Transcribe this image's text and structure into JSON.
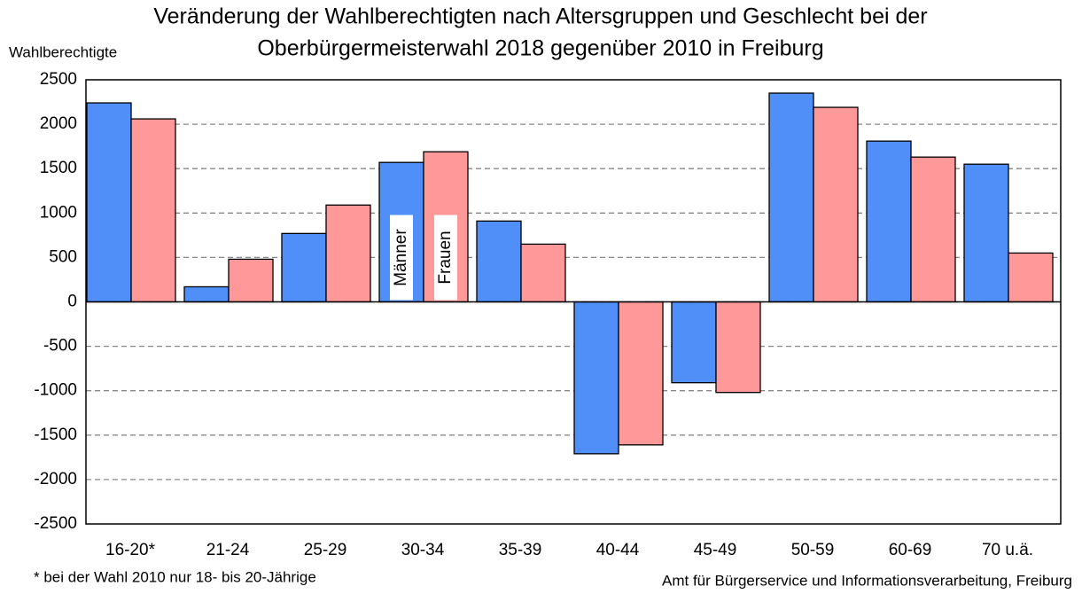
{
  "chart_data": {
    "type": "bar",
    "title": [
      "Veränderung der Wahlberechtigten nach Altersgruppen und Geschlecht bei der",
      "Oberbürgermeisterwahl 2018 gegenüber 2010 in Freiburg"
    ],
    "y_label": "Wahlberechtigte",
    "footnote": "* bei der Wahl 2010 nur 18- bis 20-Jährige",
    "source": "Amt für Bürgerservice und Informationsverarbeitung, Freiburg",
    "categories": [
      "16-20*",
      "21-24",
      "25-29",
      "30-34",
      "35-39",
      "40-44",
      "45-49",
      "50-59",
      "60-69",
      "70 u.ä."
    ],
    "series": [
      {
        "name": "Männer",
        "color": "#4f8ff7",
        "values": [
          2240,
          170,
          770,
          1570,
          910,
          -1710,
          -910,
          2350,
          1810,
          1550
        ]
      },
      {
        "name": "Frauen",
        "color": "#ff9999",
        "values": [
          2060,
          480,
          1090,
          1690,
          650,
          -1610,
          -1020,
          2190,
          1630,
          550
        ]
      }
    ],
    "legend_category": 3,
    "ylim": [
      -2500,
      2500
    ],
    "yticks": [
      -2500,
      -2000,
      -1500,
      -1000,
      -500,
      0,
      500,
      1000,
      1500,
      2000,
      2500
    ],
    "grid": true
  }
}
